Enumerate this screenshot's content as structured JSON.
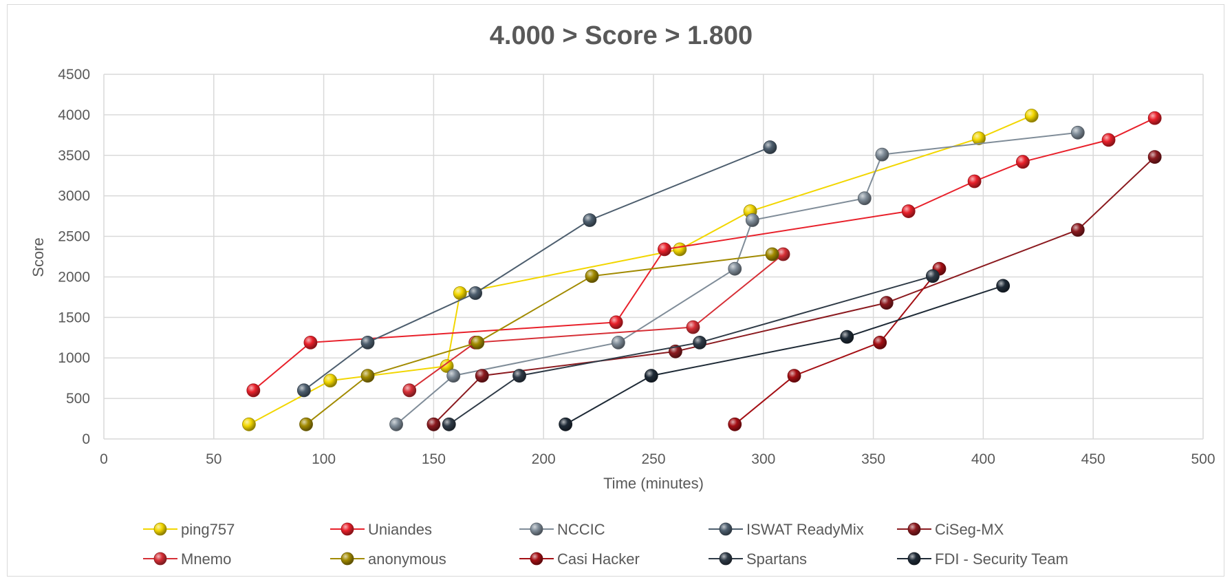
{
  "chart_data": {
    "type": "scatter",
    "title": "4.000 > Score > 1.800",
    "xlabel": "Time (minutes)",
    "ylabel": "Score",
    "xlim": [
      0,
      500
    ],
    "ylim": [
      0,
      4500
    ],
    "xticks": [
      "0",
      "50",
      "100",
      "150",
      "200",
      "250",
      "300",
      "350",
      "400",
      "450",
      "500"
    ],
    "yticks": [
      "0",
      "500",
      "1000",
      "1500",
      "2000",
      "2500",
      "3000",
      "3500",
      "4000",
      "4500"
    ],
    "grid": true,
    "lines": true,
    "legend_position": "bottom",
    "series": [
      {
        "name": "ping757",
        "color": "#f2d600",
        "points": [
          [
            66,
            180
          ],
          [
            103,
            720
          ],
          [
            156,
            900
          ],
          [
            162,
            1800
          ],
          [
            262,
            2340
          ],
          [
            294,
            2810
          ],
          [
            398,
            3710
          ],
          [
            422,
            3990
          ]
        ]
      },
      {
        "name": "Uniandes",
        "color": "#e8202a",
        "points": [
          [
            68,
            600
          ],
          [
            94,
            1190
          ],
          [
            233,
            1440
          ],
          [
            255,
            2340
          ],
          [
            366,
            2810
          ],
          [
            396,
            3180
          ],
          [
            418,
            3420
          ],
          [
            457,
            3690
          ],
          [
            478,
            3960
          ]
        ]
      },
      {
        "name": "NCCIC",
        "color": "#7f8c98",
        "points": [
          [
            133,
            180
          ],
          [
            159,
            780
          ],
          [
            234,
            1190
          ],
          [
            287,
            2100
          ],
          [
            295,
            2700
          ],
          [
            346,
            2970
          ],
          [
            354,
            3510
          ],
          [
            443,
            3780
          ]
        ]
      },
      {
        "name": "ISWAT ReadyMix",
        "color": "#4d5e6e",
        "points": [
          [
            91,
            600
          ],
          [
            120,
            1190
          ],
          [
            169,
            1800
          ],
          [
            221,
            2700
          ],
          [
            303,
            3600
          ]
        ]
      },
      {
        "name": "CiSeg-MX",
        "color": "#8b1a1f",
        "points": [
          [
            150,
            180
          ],
          [
            172,
            780
          ],
          [
            260,
            1080
          ],
          [
            356,
            1680
          ],
          [
            443,
            2580
          ],
          [
            478,
            3480
          ]
        ]
      },
      {
        "name": "Mnemo",
        "color": "#d62f36",
        "points": [
          [
            139,
            600
          ],
          [
            169,
            1190
          ],
          [
            268,
            1380
          ],
          [
            309,
            2280
          ]
        ]
      },
      {
        "name": "anonymous",
        "color": "#a18a00",
        "points": [
          [
            92,
            180
          ],
          [
            120,
            780
          ],
          [
            170,
            1190
          ],
          [
            222,
            2010
          ],
          [
            304,
            2280
          ]
        ]
      },
      {
        "name": "Casi Hacker",
        "color": "#a40f14",
        "points": [
          [
            287,
            180
          ],
          [
            314,
            780
          ],
          [
            353,
            1190
          ],
          [
            380,
            2100
          ]
        ]
      },
      {
        "name": "Spartans",
        "color": "#2f3b47",
        "points": [
          [
            157,
            180
          ],
          [
            189,
            780
          ],
          [
            271,
            1190
          ],
          [
            377,
            2010
          ]
        ]
      },
      {
        "name": "FDI - Security Team",
        "color": "#1e2a36",
        "points": [
          [
            210,
            180
          ],
          [
            249,
            780
          ],
          [
            338,
            1260
          ],
          [
            409,
            1890
          ]
        ]
      }
    ]
  }
}
